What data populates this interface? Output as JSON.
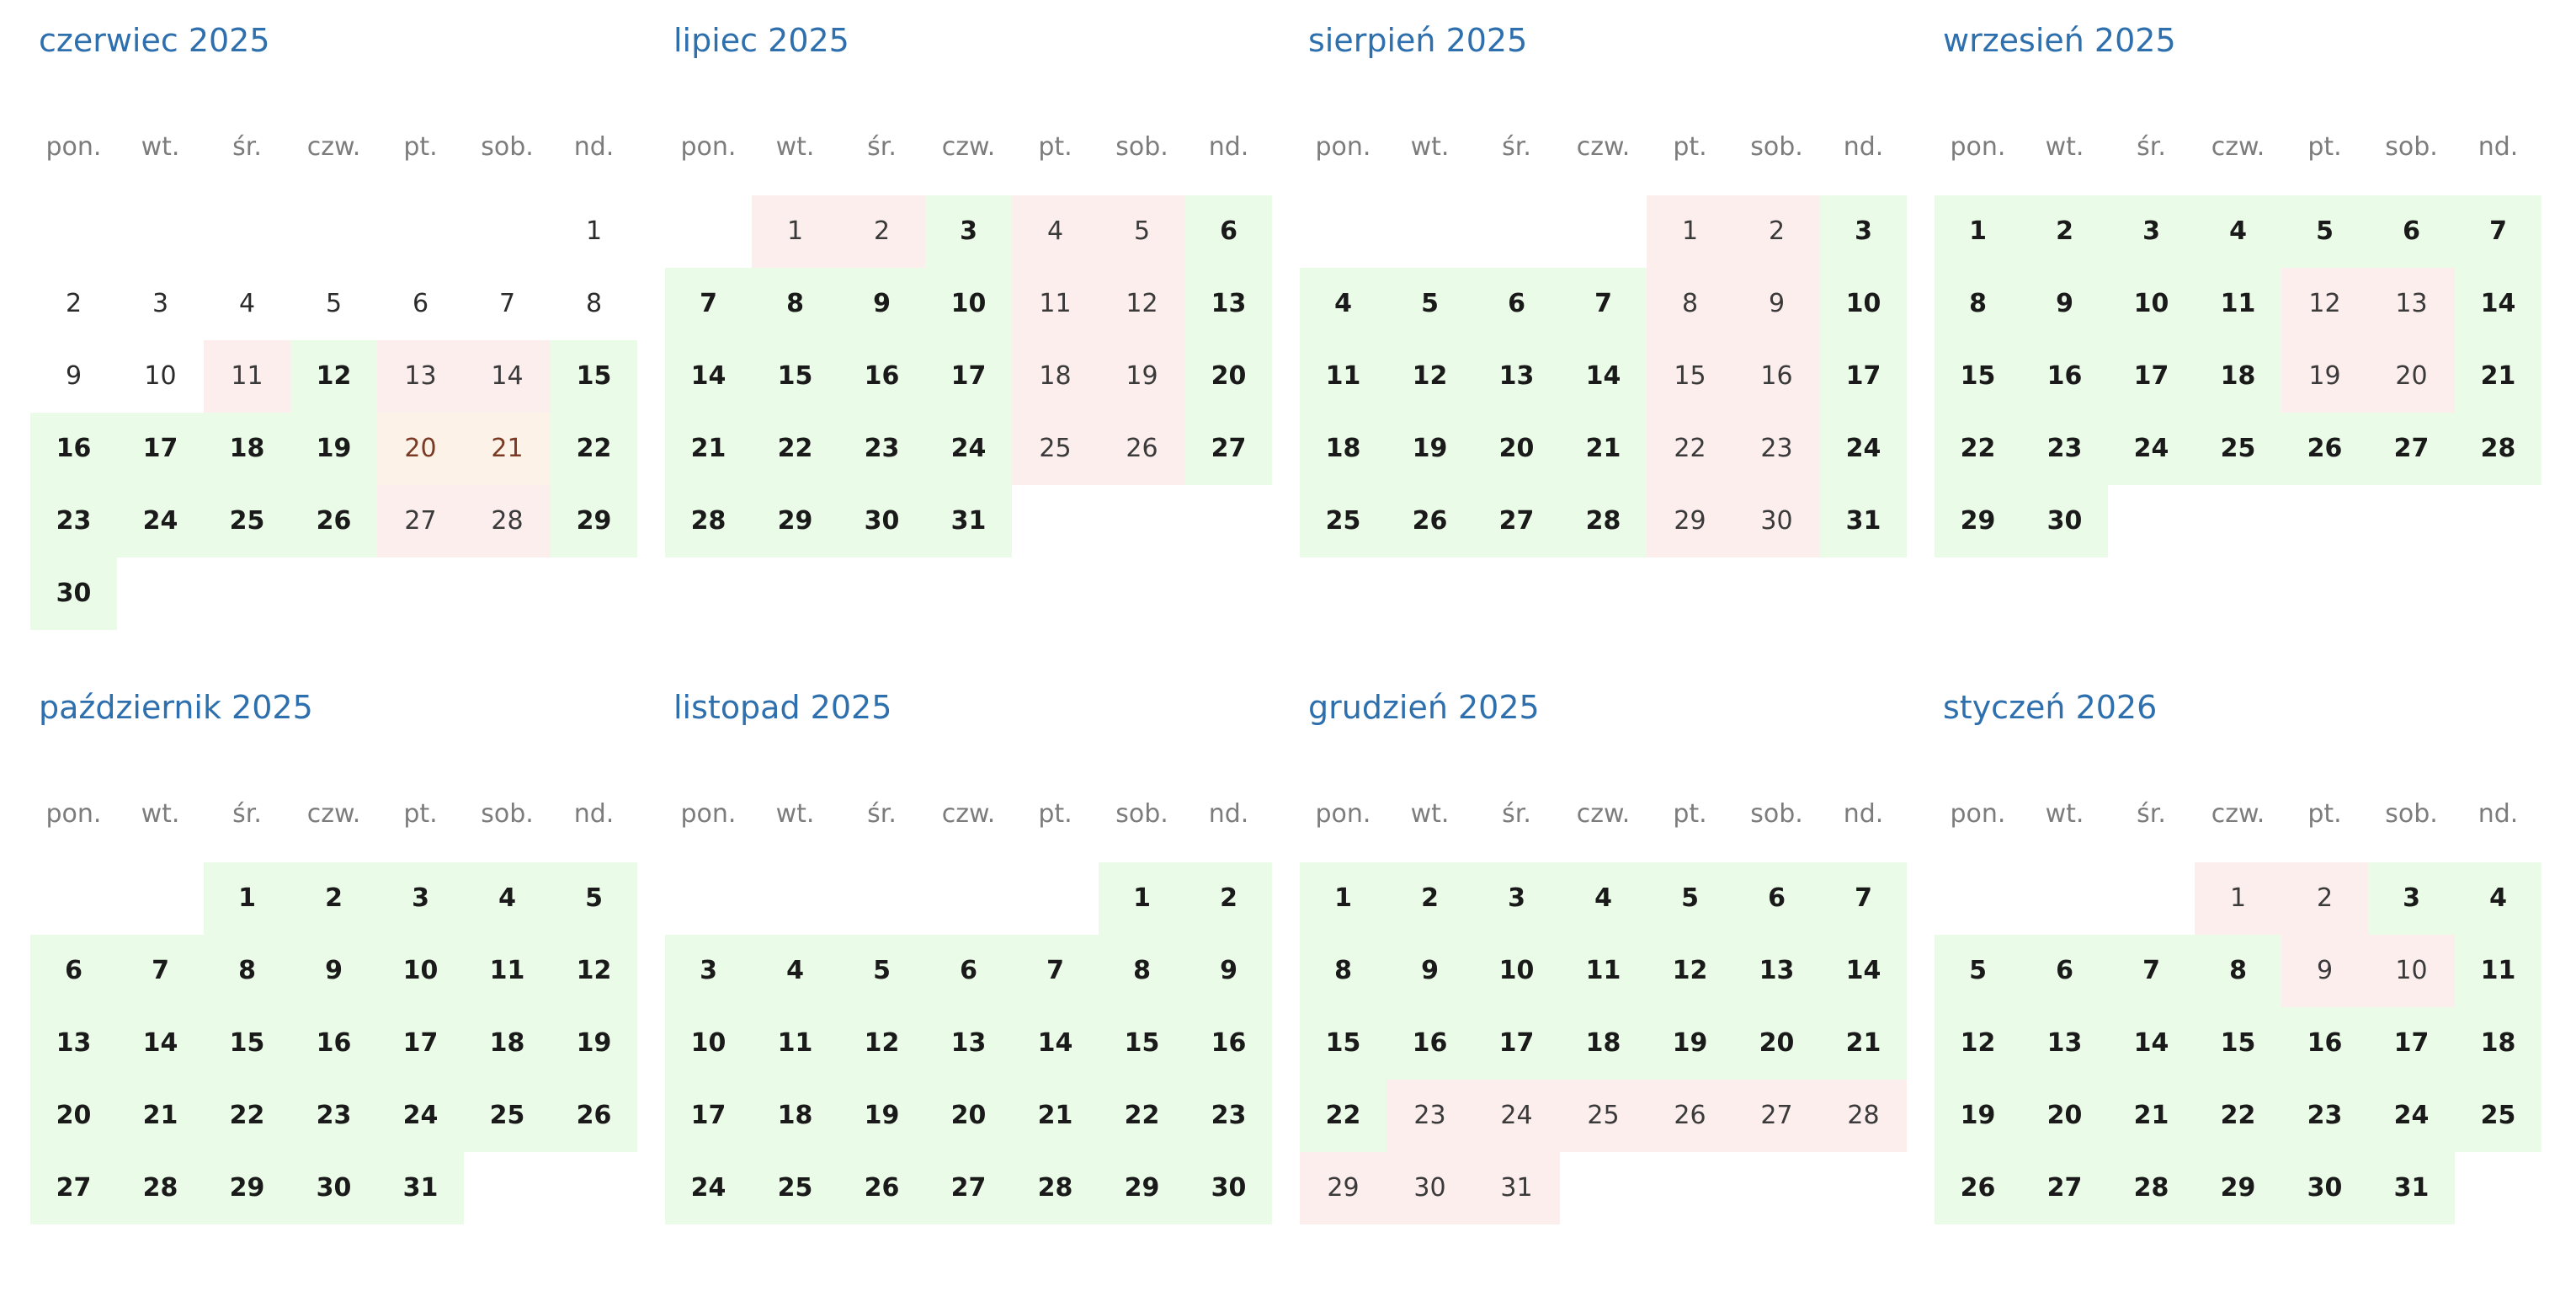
{
  "weekday_labels": [
    "pon.",
    "wt.",
    "śr.",
    "czw.",
    "pt.",
    "sob.",
    "nd."
  ],
  "legend_colors": {
    "available": "#eafbe7",
    "booked": "#fdeeee",
    "partially_booked": "#fdf2e8",
    "title": "#2e6fae"
  },
  "months": [
    {
      "title": "czerwiec 2025",
      "first_weekday": 6,
      "days": [
        "past",
        "past",
        "past",
        "past",
        "past",
        "past",
        "past",
        "past",
        "past",
        "past",
        "booked",
        "free",
        "booked",
        "booked",
        "free",
        "free",
        "free",
        "free",
        "free",
        "partial",
        "partial",
        "free",
        "free",
        "free",
        "free",
        "free",
        "booked",
        "booked",
        "free",
        "free"
      ]
    },
    {
      "title": "lipiec 2025",
      "first_weekday": 1,
      "days": [
        "booked",
        "booked",
        "free",
        "booked",
        "booked",
        "free",
        "free",
        "free",
        "free",
        "free",
        "booked",
        "booked",
        "free",
        "free",
        "free",
        "free",
        "free",
        "booked",
        "booked",
        "free",
        "free",
        "free",
        "free",
        "free",
        "booked",
        "booked",
        "free",
        "free",
        "free",
        "free",
        "free"
      ]
    },
    {
      "title": "sierpień 2025",
      "first_weekday": 4,
      "days": [
        "booked",
        "booked",
        "free",
        "free",
        "free",
        "free",
        "free",
        "booked",
        "booked",
        "free",
        "free",
        "free",
        "free",
        "free",
        "booked",
        "booked",
        "free",
        "free",
        "free",
        "free",
        "free",
        "booked",
        "booked",
        "free",
        "free",
        "free",
        "free",
        "free",
        "booked",
        "booked",
        "free"
      ]
    },
    {
      "title": "wrzesień 2025",
      "first_weekday": 0,
      "days": [
        "free",
        "free",
        "free",
        "free",
        "free",
        "free",
        "free",
        "free",
        "free",
        "free",
        "free",
        "booked",
        "booked",
        "free",
        "free",
        "free",
        "free",
        "free",
        "booked",
        "booked",
        "free",
        "free",
        "free",
        "free",
        "free",
        "free",
        "free",
        "free",
        "free",
        "free"
      ]
    },
    {
      "title": "październik 2025",
      "first_weekday": 2,
      "days": [
        "free",
        "free",
        "free",
        "free",
        "free",
        "free",
        "free",
        "free",
        "free",
        "free",
        "free",
        "free",
        "free",
        "free",
        "free",
        "free",
        "free",
        "free",
        "free",
        "free",
        "free",
        "free",
        "free",
        "free",
        "free",
        "free",
        "free",
        "free",
        "free",
        "free",
        "free"
      ]
    },
    {
      "title": "listopad 2025",
      "first_weekday": 5,
      "days": [
        "free",
        "free",
        "free",
        "free",
        "free",
        "free",
        "free",
        "free",
        "free",
        "free",
        "free",
        "free",
        "free",
        "free",
        "free",
        "free",
        "free",
        "free",
        "free",
        "free",
        "free",
        "free",
        "free",
        "free",
        "free",
        "free",
        "free",
        "free",
        "free",
        "free"
      ]
    },
    {
      "title": "grudzień 2025",
      "first_weekday": 0,
      "days": [
        "free",
        "free",
        "free",
        "free",
        "free",
        "free",
        "free",
        "free",
        "free",
        "free",
        "free",
        "free",
        "free",
        "free",
        "free",
        "free",
        "free",
        "free",
        "free",
        "free",
        "free",
        "free",
        "booked",
        "booked",
        "booked",
        "booked",
        "booked",
        "booked",
        "booked",
        "booked",
        "booked"
      ]
    },
    {
      "title": "styczeń 2026",
      "first_weekday": 3,
      "days": [
        "booked",
        "booked",
        "free",
        "free",
        "free",
        "free",
        "free",
        "free",
        "booked",
        "booked",
        "free",
        "free",
        "free",
        "free",
        "free",
        "free",
        "free",
        "free",
        "free",
        "free",
        "free",
        "free",
        "free",
        "free",
        "free",
        "free",
        "free",
        "free",
        "free",
        "free",
        "free"
      ]
    }
  ]
}
